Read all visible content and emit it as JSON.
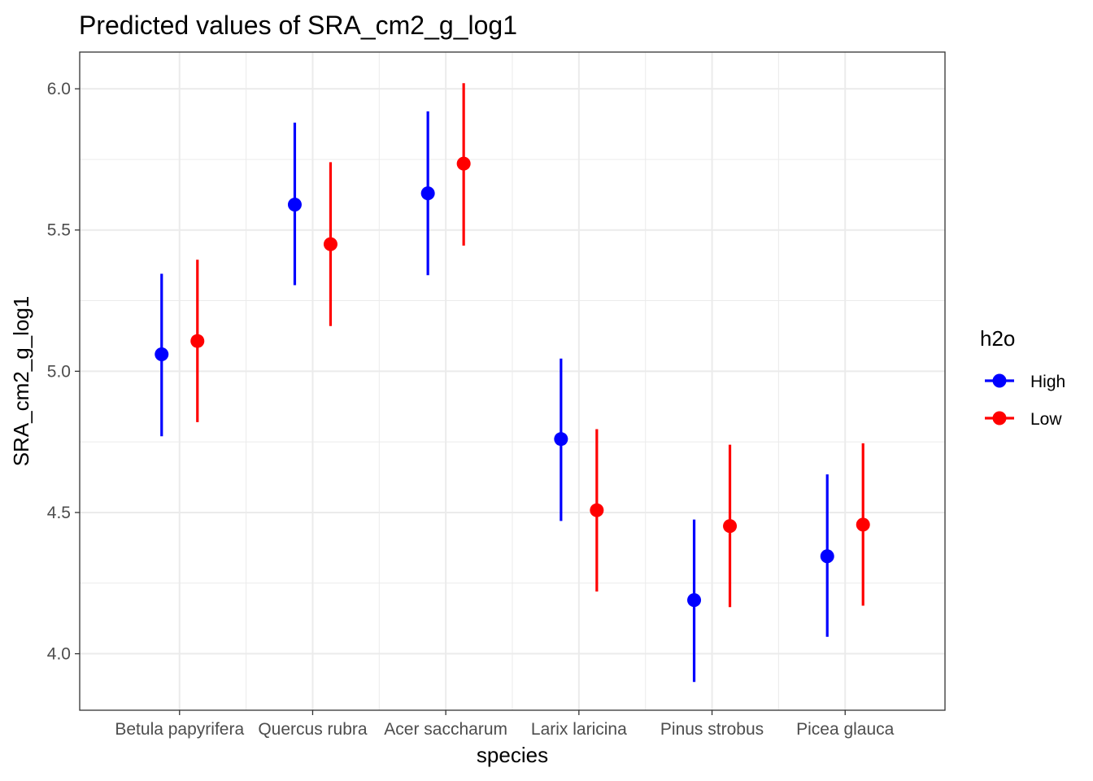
{
  "chart_data": {
    "type": "scatter",
    "title": "Predicted values of SRA_cm2_g_log1",
    "xlabel": "species",
    "ylabel": "SRA_cm2_g_log1",
    "categories": [
      "Betula papyrifera",
      "Quercus rubra",
      "Acer saccharum",
      "Larix laricina",
      "Pinus strobus",
      "Picea glauca"
    ],
    "ylim": [
      3.8,
      6.13
    ],
    "yticks": [
      4.0,
      4.5,
      5.0,
      5.5,
      6.0
    ],
    "ytick_labels": [
      "4.0",
      "4.5",
      "5.0",
      "5.5",
      "6.0"
    ],
    "grid": true,
    "legend": {
      "title": "h2o",
      "placement": "right"
    },
    "series": [
      {
        "name": "High",
        "color": "#0000ff",
        "values": [
          5.06,
          5.59,
          5.63,
          4.76,
          4.19,
          4.345
        ],
        "lower": [
          4.77,
          5.305,
          5.34,
          4.47,
          3.9,
          4.06
        ],
        "upper": [
          5.345,
          5.88,
          5.92,
          5.045,
          4.475,
          4.635
        ]
      },
      {
        "name": "Low",
        "color": "#ff0000",
        "values": [
          5.107,
          5.45,
          5.735,
          4.508,
          4.452,
          4.457
        ],
        "lower": [
          4.82,
          5.16,
          5.445,
          4.22,
          4.165,
          4.17
        ],
        "upper": [
          5.395,
          5.74,
          6.02,
          4.795,
          4.74,
          4.745
        ]
      }
    ]
  }
}
